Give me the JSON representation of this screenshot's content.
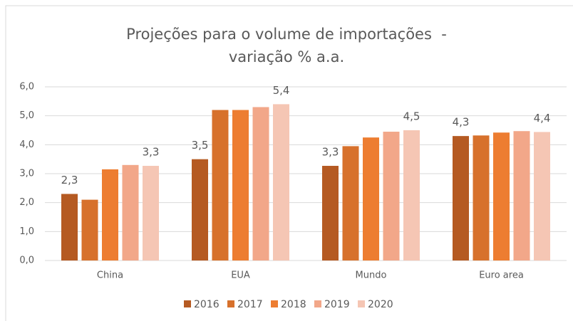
{
  "chart_data": {
    "type": "bar",
    "title": "Projeções para o volume de importações  - variação % a.a.",
    "categories": [
      "China",
      "EUA",
      "Mundo",
      "Euro area"
    ],
    "series": [
      {
        "name": "2016",
        "color": "#b55a22",
        "values": [
          2.3,
          3.5,
          3.27,
          4.3
        ],
        "value_labels": [
          "2,3",
          "3,5",
          "3,3",
          "4,3"
        ]
      },
      {
        "name": "2017",
        "color": "#d7712c",
        "values": [
          2.1,
          5.2,
          3.95,
          4.32
        ]
      },
      {
        "name": "2018",
        "color": "#ed7d31",
        "values": [
          3.15,
          5.2,
          4.25,
          4.42
        ]
      },
      {
        "name": "2019",
        "color": "#f2a789",
        "values": [
          3.3,
          5.3,
          4.45,
          4.47
        ]
      },
      {
        "name": "2020",
        "color": "#f5c6b4",
        "values": [
          3.27,
          5.4,
          4.5,
          4.44
        ],
        "value_labels": [
          "3,3",
          "5,4",
          "4,5",
          "4,4"
        ]
      }
    ],
    "ylim": [
      0,
      6
    ],
    "yticks": [
      {
        "value": 0,
        "label": "0,0"
      },
      {
        "value": 1,
        "label": "1,0"
      },
      {
        "value": 2,
        "label": "2,0"
      },
      {
        "value": 3,
        "label": "3,0"
      },
      {
        "value": 4,
        "label": "4,0"
      },
      {
        "value": 5,
        "label": "5,0"
      },
      {
        "value": 6,
        "label": "6,0"
      }
    ],
    "grid": true,
    "legend": "bottom"
  }
}
